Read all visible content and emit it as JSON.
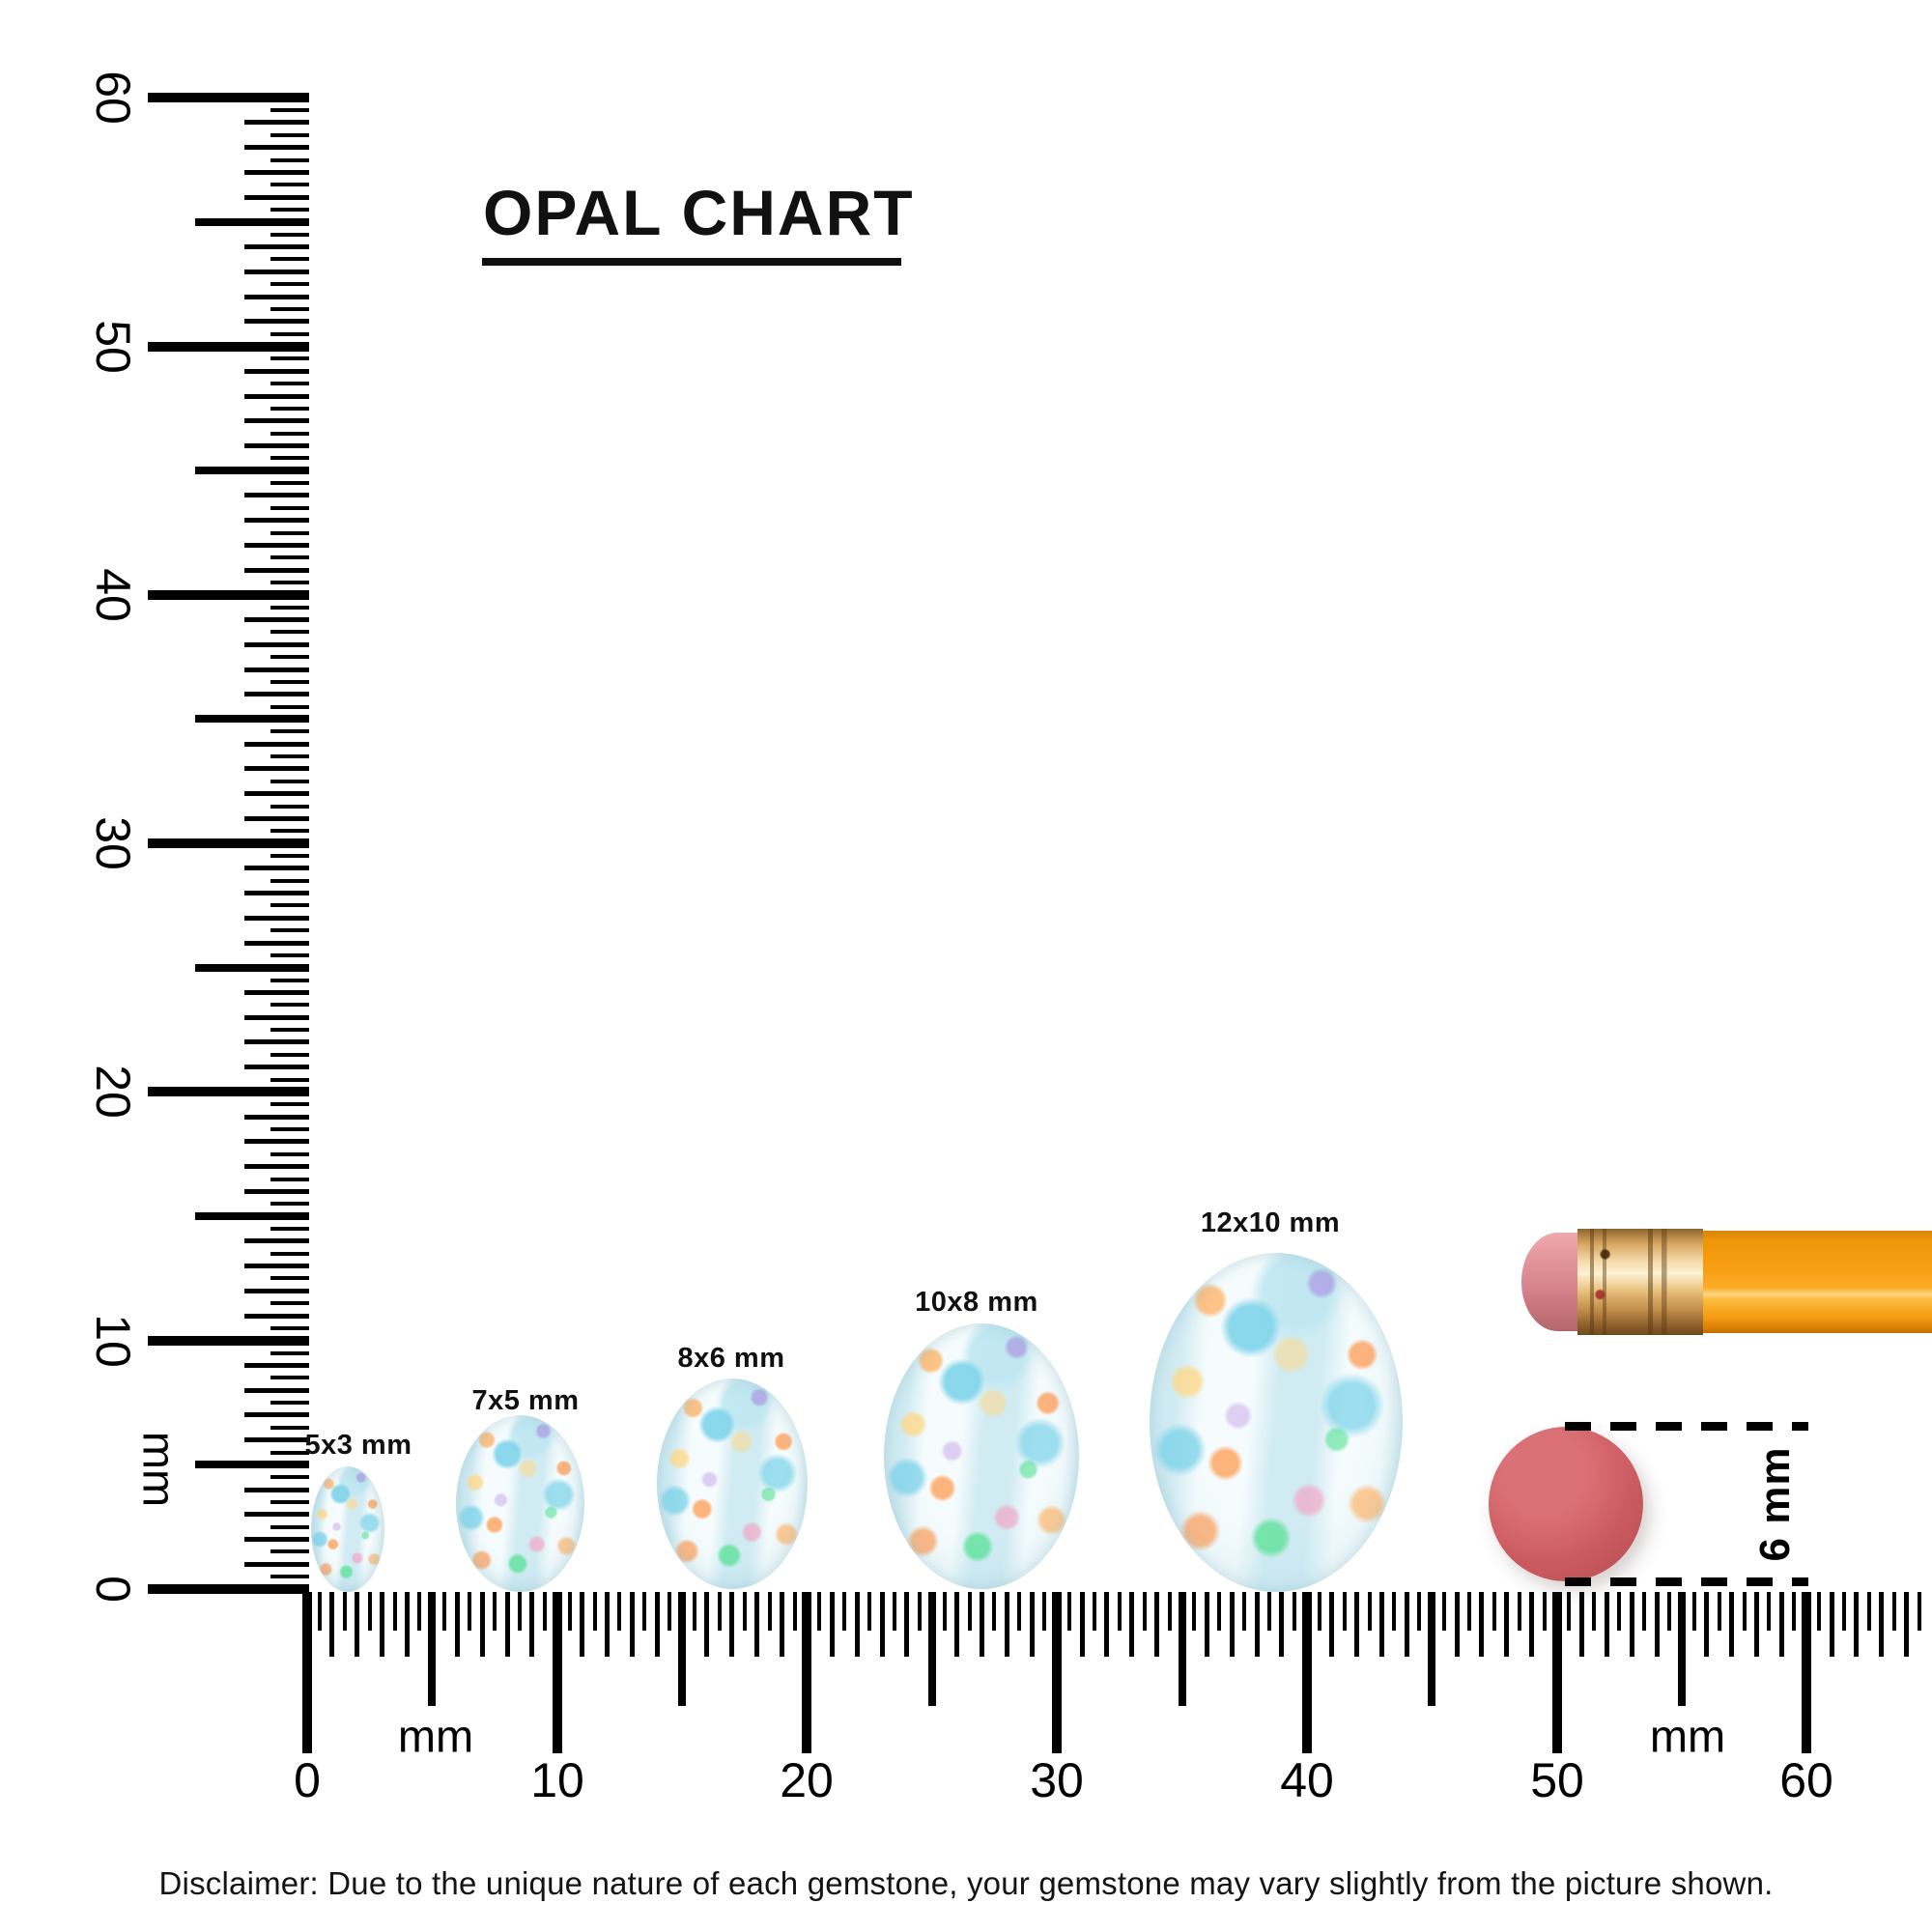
{
  "title": {
    "text": "OPAL CHART"
  },
  "rulers": {
    "vertical": {
      "unit": "mm",
      "labels": [
        "0",
        "10",
        "20",
        "30",
        "40",
        "50",
        "60"
      ]
    },
    "horizontal": {
      "unit_left": "mm",
      "unit_right": "mm",
      "labels": [
        "0",
        "10",
        "20",
        "30",
        "40",
        "50",
        "60"
      ]
    }
  },
  "opals": [
    {
      "label": "5x3 mm",
      "width_mm": 3,
      "height_mm": 5
    },
    {
      "label": "7x5 mm",
      "width_mm": 5,
      "height_mm": 7
    },
    {
      "label": "8x6 mm",
      "width_mm": 6,
      "height_mm": 8
    },
    {
      "label": "10x8 mm",
      "width_mm": 8,
      "height_mm": 10
    },
    {
      "label": "12x10 mm",
      "width_mm": 10,
      "height_mm": 12
    }
  ],
  "reference": {
    "label": "6 mm",
    "diameter_mm": 6
  },
  "disclaimer": "Disclaimer: Due to the unique nature of each gemstone, your gemstone may vary slightly from the picture shown.",
  "colors": {
    "ink": "#000000",
    "accent_red": "#cb5a5f",
    "pencil_orange": "#f89e13",
    "eraser_pink": "#d5858b",
    "ferrule_gold": "#e9c27e",
    "opal_base": "#ecf6f8"
  }
}
